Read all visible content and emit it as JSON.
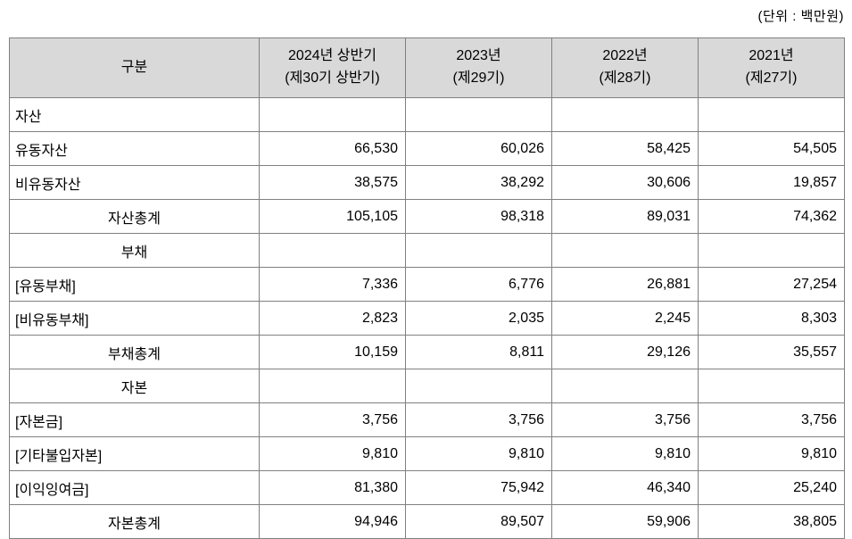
{
  "unit_label": "(단위 : 백만원)",
  "table": {
    "header_bg": "#d9d9d9",
    "border_color": "#808080",
    "columns": [
      {
        "label": "구분",
        "sublabel": ""
      },
      {
        "label": "2024년 상반기",
        "sublabel": "(제30기 상반기)"
      },
      {
        "label": "2023년",
        "sublabel": "(제29기)"
      },
      {
        "label": "2022년",
        "sublabel": "(제28기)"
      },
      {
        "label": "2021년",
        "sublabel": "(제27기)"
      }
    ],
    "rows": [
      {
        "label": "자산",
        "align": "left",
        "values": [
          "",
          "",
          "",
          ""
        ]
      },
      {
        "label": "유동자산",
        "align": "left",
        "values": [
          "66,530",
          "60,026",
          "58,425",
          "54,505"
        ]
      },
      {
        "label": "비유동자산",
        "align": "left",
        "values": [
          "38,575",
          "38,292",
          "30,606",
          "19,857"
        ]
      },
      {
        "label": "자산총계",
        "align": "center",
        "values": [
          "105,105",
          "98,318",
          "89,031",
          "74,362"
        ]
      },
      {
        "label": "부채",
        "align": "center",
        "values": [
          "",
          "",
          "",
          ""
        ]
      },
      {
        "label": "[유동부채]",
        "align": "left",
        "values": [
          "7,336",
          "6,776",
          "26,881",
          "27,254"
        ]
      },
      {
        "label": "[비유동부채]",
        "align": "left",
        "values": [
          "2,823",
          "2,035",
          "2,245",
          "8,303"
        ]
      },
      {
        "label": "부채총계",
        "align": "center",
        "values": [
          "10,159",
          "8,811",
          "29,126",
          "35,557"
        ]
      },
      {
        "label": "자본",
        "align": "center",
        "values": [
          "",
          "",
          "",
          ""
        ]
      },
      {
        "label": "[자본금]",
        "align": "left",
        "values": [
          "3,756",
          "3,756",
          "3,756",
          "3,756"
        ]
      },
      {
        "label": "[기타불입자본]",
        "align": "left",
        "values": [
          "9,810",
          "9,810",
          "9,810",
          "9,810"
        ]
      },
      {
        "label": "[이익잉여금]",
        "align": "left",
        "values": [
          "81,380",
          "75,942",
          "46,340",
          "25,240"
        ]
      },
      {
        "label": "자본총계",
        "align": "center",
        "values": [
          "94,946",
          "89,507",
          "59,906",
          "38,805"
        ]
      }
    ]
  }
}
